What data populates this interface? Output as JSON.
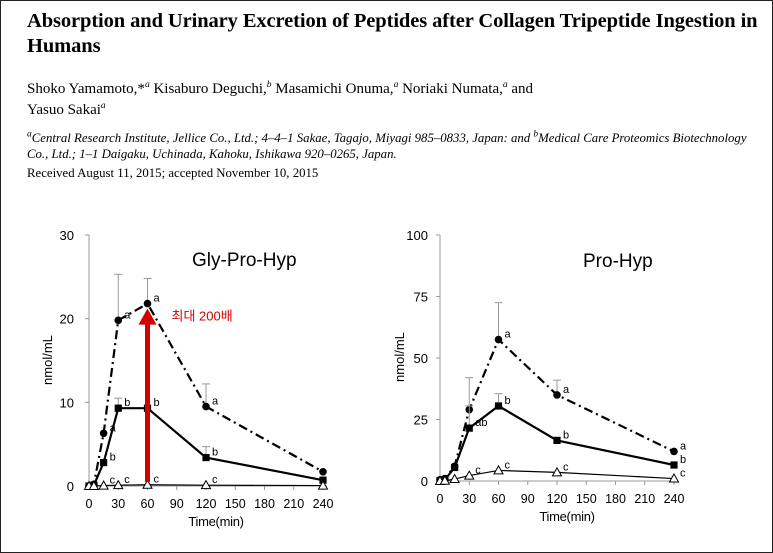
{
  "paper": {
    "title": "Absorption and Urinary Excretion of Peptides after Collagen Tripeptide Ingestion in Humans",
    "authors": [
      {
        "name": "Shoko Yamamoto,*",
        "aff": "a",
        "sep": " "
      },
      {
        "name": "Kisaburo Deguchi,",
        "aff": "b",
        "sep": " "
      },
      {
        "name": "Masamichi Onuma,",
        "aff": "a",
        "sep": " "
      },
      {
        "name": "Noriaki Numata,",
        "aff": "a",
        "sep": " and "
      },
      {
        "name": "Yasuo Sakai",
        "aff": "a",
        "sep": ""
      }
    ],
    "affiliation_a_mark": "a",
    "affiliation_a": "Central Research Institute, Jellice Co., Ltd.; 4–4–1 Sakae, Tagajo, Miyagi 985–0833, Japan: and",
    "affiliation_b_mark": "b",
    "affiliation_b": "Medical Care Proteomics Biotechnology Co., Ltd.; 1–1 Daigaku, Uchinada, Kahoku, Ishikawa 920–0265, Japan.",
    "received": "Received August 11, 2015; accepted November 10, 2015"
  },
  "annotation": {
    "text": "최대 200배",
    "color": "#d40000"
  },
  "chart_data": [
    {
      "type": "line",
      "title": "Gly-Pro-Hyp",
      "xlabel": "Time(min)",
      "ylabel": "nmol/mL",
      "x": [
        0,
        15,
        30,
        60,
        120,
        240
      ],
      "xticks": [
        0,
        30,
        60,
        90,
        120,
        150,
        180,
        210,
        240
      ],
      "xlim": [
        -5,
        245
      ],
      "ylim": [
        0,
        30
      ],
      "yticks": [
        0,
        10,
        20,
        30
      ],
      "series": [
        {
          "name": "circle-dashdot",
          "marker": "circle",
          "style": "dashdot",
          "x": [
            0,
            5,
            15,
            30,
            60,
            120,
            240
          ],
          "values": [
            0,
            0.2,
            6.3,
            19.8,
            21.8,
            9.5,
            1.7
          ],
          "err": [
            0,
            0,
            0,
            5.5,
            3.0,
            2.7,
            0
          ],
          "labels": [
            "",
            "",
            "a",
            "a",
            "a",
            "a",
            ""
          ]
        },
        {
          "name": "square-solid",
          "marker": "square",
          "style": "solid",
          "x": [
            0,
            5,
            15,
            30,
            60,
            120,
            240
          ],
          "values": [
            0,
            0.1,
            2.8,
            9.3,
            9.3,
            3.4,
            0.7
          ],
          "err": [
            0,
            0,
            0,
            1.2,
            0,
            1.3,
            0
          ],
          "labels": [
            "",
            "",
            "b",
            "b",
            "b",
            "b",
            ""
          ]
        },
        {
          "name": "triangle-solid",
          "marker": "triangle",
          "style": "solid",
          "x": [
            0,
            5,
            15,
            30,
            60,
            120,
            240
          ],
          "values": [
            0,
            0,
            0.05,
            0.1,
            0.15,
            0.1,
            0.05
          ],
          "err": [
            0,
            0,
            0,
            0,
            0,
            0,
            0
          ],
          "labels": [
            "",
            "",
            "c",
            "c",
            "c",
            "c",
            ""
          ]
        }
      ]
    },
    {
      "type": "line",
      "title": "Pro-Hyp",
      "xlabel": "Time(min)",
      "ylabel": "nmol/mL",
      "x": [
        0,
        15,
        30,
        60,
        120,
        240
      ],
      "xticks": [
        0,
        30,
        60,
        90,
        120,
        150,
        180,
        210,
        240
      ],
      "xlim": [
        -5,
        245
      ],
      "ylim": [
        0,
        100
      ],
      "yticks": [
        0,
        25,
        50,
        75,
        100
      ],
      "series": [
        {
          "name": "circle-dashdot",
          "marker": "circle",
          "style": "dashdot",
          "x": [
            0,
            5,
            15,
            30,
            60,
            120,
            240
          ],
          "values": [
            0.5,
            1.0,
            6.0,
            29,
            57.5,
            35,
            12
          ],
          "err": [
            0,
            0,
            0,
            13,
            15,
            6,
            0
          ],
          "labels": [
            "",
            "",
            "",
            "",
            "a",
            "a",
            "a"
          ]
        },
        {
          "name": "square-solid",
          "marker": "square",
          "style": "solid",
          "x": [
            0,
            5,
            15,
            30,
            60,
            120,
            240
          ],
          "values": [
            0.2,
            0.5,
            5.5,
            21.5,
            30.5,
            16.5,
            6.5
          ],
          "err": [
            0,
            0,
            0,
            9,
            5,
            0,
            0
          ],
          "labels": [
            "",
            "",
            "",
            "ab",
            "b",
            "b",
            "b"
          ]
        },
        {
          "name": "triangle-solid",
          "marker": "triangle",
          "style": "solid",
          "x": [
            0,
            5,
            15,
            30,
            60,
            120,
            240
          ],
          "values": [
            0,
            0.1,
            0.8,
            2.2,
            4.3,
            3.5,
            1.0
          ],
          "err": [
            0,
            0,
            0,
            0,
            0,
            0,
            0
          ],
          "labels": [
            "",
            "",
            "",
            "c",
            "c",
            "c",
            "c"
          ]
        }
      ]
    }
  ]
}
